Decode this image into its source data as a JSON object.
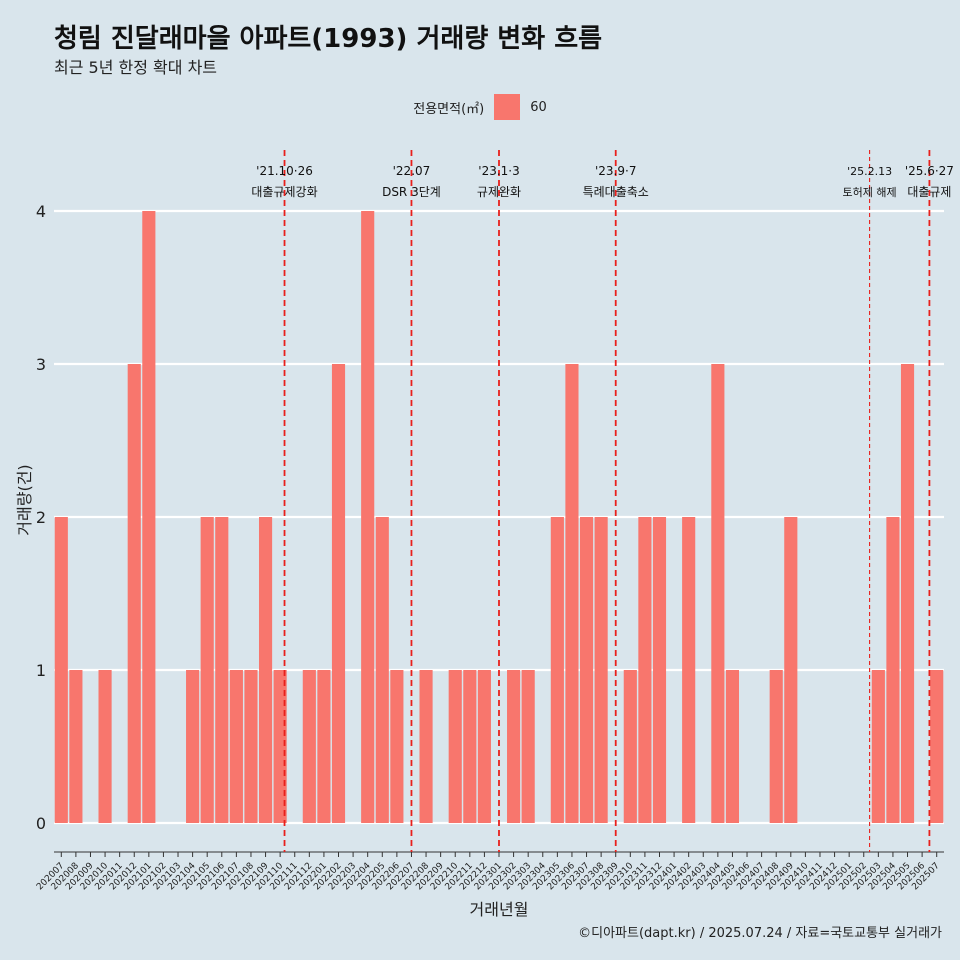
{
  "title": "청림 진달래마을 아파트(1993) 거래량 변화 흐름",
  "subtitle": "최근 5년 한정 확대 차트",
  "legend": {
    "title": "전용면적(㎡)",
    "item": "60",
    "color": "#f8766d"
  },
  "caption": "©디아파트(dapt.kr) / 2025.07.24 / 자료=국토교통부 실거래가",
  "chart_data": {
    "type": "bar",
    "xlabel": "거래년월",
    "ylabel": "거래량(건)",
    "ylim": [
      0,
      4
    ],
    "yticks": [
      0,
      1,
      2,
      3,
      4
    ],
    "grid": true,
    "legend_position": "top",
    "categories": [
      "202007",
      "202008",
      "202009",
      "202010",
      "202011",
      "202012",
      "202101",
      "202102",
      "202103",
      "202104",
      "202105",
      "202106",
      "202107",
      "202108",
      "202109",
      "202110",
      "202111",
      "202112",
      "202201",
      "202202",
      "202203",
      "202204",
      "202205",
      "202206",
      "202207",
      "202208",
      "202209",
      "202210",
      "202211",
      "202212",
      "202301",
      "202302",
      "202303",
      "202304",
      "202305",
      "202306",
      "202307",
      "202308",
      "202309",
      "202310",
      "202311",
      "202312",
      "202401",
      "202402",
      "202403",
      "202404",
      "202405",
      "202406",
      "202407",
      "202408",
      "202409",
      "202410",
      "202411",
      "202412",
      "202501",
      "202502",
      "202503",
      "202504",
      "202505",
      "202506",
      "202507"
    ],
    "series": [
      {
        "name": "60",
        "color": "#f8766d",
        "values": [
          2,
          1,
          0,
          1,
          0,
          3,
          4,
          0,
          0,
          1,
          2,
          2,
          1,
          1,
          2,
          1,
          0,
          1,
          1,
          3,
          0,
          4,
          2,
          1,
          0,
          1,
          0,
          1,
          1,
          1,
          0,
          1,
          1,
          0,
          2,
          3,
          2,
          2,
          0,
          1,
          2,
          2,
          0,
          2,
          0,
          3,
          1,
          0,
          0,
          1,
          2,
          0,
          0,
          0,
          0,
          0,
          1,
          2,
          3,
          0,
          1
        ]
      }
    ],
    "annotations": [
      {
        "at": "202110",
        "offset": 0.3,
        "line1": "'21.10·26",
        "line2": "대출규제강화",
        "style": "thick"
      },
      {
        "at": "202207",
        "offset": 0,
        "line1": "'22.07",
        "line2": "DSR 3단계",
        "style": "thick"
      },
      {
        "at": "202301",
        "offset": 0,
        "line1": "'23.1·3",
        "line2": "규제완화",
        "style": "thick"
      },
      {
        "at": "202309",
        "offset": 0,
        "line1": "'23.9·7",
        "line2": "특례대출축소",
        "style": "thick"
      },
      {
        "at": "202502",
        "offset": 0.4,
        "line1": "'25.2.13",
        "line2": "토허제 해제",
        "style": "thin"
      },
      {
        "at": "202506",
        "offset": 0.5,
        "line1": "'25.6·27",
        "line2": "대출규제",
        "style": "thick"
      }
    ]
  }
}
